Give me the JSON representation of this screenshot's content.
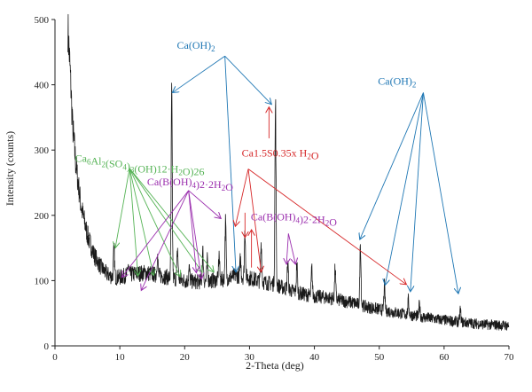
{
  "chart_data": {
    "type": "line",
    "xlabel": "2-Theta (deg)",
    "ylabel": "Intensity (counts)",
    "xlim": [
      0,
      70
    ],
    "ylim": [
      0,
      500
    ],
    "xticks": [
      0,
      10,
      20,
      30,
      40,
      50,
      60,
      70
    ],
    "yticks": [
      0,
      100,
      200,
      300,
      400,
      500
    ],
    "grid": false,
    "series_color": "#1a1a1a",
    "baseline": [
      [
        2.0,
        485
      ],
      [
        2.3,
        430
      ],
      [
        2.7,
        340
      ],
      [
        3.2,
        280
      ],
      [
        4.0,
        215
      ],
      [
        5.0,
        170
      ],
      [
        6.0,
        140
      ],
      [
        7.0,
        122
      ],
      [
        8.0,
        110
      ],
      [
        9.0,
        105
      ],
      [
        10.0,
        105
      ],
      [
        11.0,
        108
      ],
      [
        12.0,
        110
      ],
      [
        14.0,
        112
      ],
      [
        16.0,
        108
      ],
      [
        18.0,
        104
      ],
      [
        20.0,
        100
      ],
      [
        22.0,
        98
      ],
      [
        24.0,
        100
      ],
      [
        26.0,
        102
      ],
      [
        28.0,
        108
      ],
      [
        30.0,
        104
      ],
      [
        32.0,
        98
      ],
      [
        34.0,
        94
      ],
      [
        36.0,
        86
      ],
      [
        38.0,
        80
      ],
      [
        40.0,
        76
      ],
      [
        42.0,
        74
      ],
      [
        44.0,
        70
      ],
      [
        46.0,
        66
      ],
      [
        48.0,
        60
      ],
      [
        50.0,
        56
      ],
      [
        52.0,
        52
      ],
      [
        55.0,
        47
      ],
      [
        58.0,
        42
      ],
      [
        62.0,
        37
      ],
      [
        66.0,
        33
      ],
      [
        70.0,
        31
      ]
    ],
    "peaks": [
      {
        "x": 9.1,
        "y": 148
      },
      {
        "x": 11.3,
        "y": 125
      },
      {
        "x": 15.8,
        "y": 138
      },
      {
        "x": 18.0,
        "y": 385
      },
      {
        "x": 18.9,
        "y": 148
      },
      {
        "x": 20.7,
        "y": 118
      },
      {
        "x": 22.8,
        "y": 145
      },
      {
        "x": 23.5,
        "y": 130
      },
      {
        "x": 25.3,
        "y": 140
      },
      {
        "x": 26.3,
        "y": 188
      },
      {
        "x": 28.6,
        "y": 132
      },
      {
        "x": 29.3,
        "y": 178
      },
      {
        "x": 31.8,
        "y": 158
      },
      {
        "x": 34.0,
        "y": 370
      },
      {
        "x": 35.9,
        "y": 130
      },
      {
        "x": 37.3,
        "y": 125
      },
      {
        "x": 39.6,
        "y": 118
      },
      {
        "x": 43.2,
        "y": 118
      },
      {
        "x": 47.1,
        "y": 158
      },
      {
        "x": 50.8,
        "y": 92
      },
      {
        "x": 54.5,
        "y": 70
      },
      {
        "x": 56.2,
        "y": 64
      },
      {
        "x": 62.5,
        "y": 55
      }
    ],
    "annotations": [
      {
        "label": "Ca(OH)",
        "sub": "2",
        "color": "#1f77b4",
        "label_pos": [
          18.8,
          455
        ],
        "hub": [
          26.2,
          444
        ],
        "targets": [
          [
            18.1,
            388
          ],
          [
            27.9,
            113
          ],
          [
            33.4,
            370
          ]
        ]
      },
      {
        "label": "Ca(OH)",
        "sub": "2",
        "color": "#1f77b4",
        "label_pos": [
          49.8,
          400
        ],
        "hub": [
          56.8,
          388
        ],
        "targets": [
          [
            47.0,
            163
          ],
          [
            50.9,
            93
          ],
          [
            54.8,
            83
          ],
          [
            62.2,
            80
          ]
        ]
      },
      {
        "label": "Ca",
        "parts": [
          [
            "Ca",
            ""
          ],
          [
            "6",
            "sub"
          ],
          [
            "Al",
            ""
          ],
          [
            "2",
            "sub"
          ],
          [
            "(SO",
            ""
          ],
          [
            "4",
            "sub"
          ],
          [
            ")",
            ""
          ],
          [
            "3",
            "sub"
          ],
          [
            "(OH)12·H",
            ""
          ],
          [
            "2",
            "sub"
          ],
          [
            "O)26",
            ""
          ]
        ],
        "color": "#55b355",
        "label_pos": [
          3.1,
          282
        ],
        "hub": [
          11.5,
          272
        ],
        "targets": [
          [
            9.3,
            150
          ],
          [
            12.8,
            107
          ],
          [
            15.2,
            108
          ],
          [
            19.3,
            106
          ],
          [
            24.5,
            113
          ],
          [
            22.7,
            113
          ]
        ]
      },
      {
        "label": "Ca(B(OH)",
        "parts": [
          [
            "Ca(B(OH)",
            ""
          ],
          [
            "4",
            "sub"
          ],
          [
            ")2·2H",
            ""
          ],
          [
            "2",
            "sub"
          ],
          [
            "O",
            ""
          ]
        ],
        "color": "#9b2fae",
        "label_pos": [
          14.2,
          246
        ],
        "hub": [
          20.6,
          238
        ],
        "targets": [
          [
            10.3,
            105
          ],
          [
            13.3,
            85
          ],
          [
            21.8,
            112
          ],
          [
            25.6,
            195
          ],
          [
            22.6,
            102
          ]
        ]
      },
      {
        "label": "Ca1.5S0.35x H",
        "parts": [
          [
            "Ca1.5S0.35x H",
            ""
          ],
          [
            "2",
            "sub"
          ],
          [
            "O",
            ""
          ]
        ],
        "color": "#d62728",
        "label_pos": [
          28.8,
          290
        ],
        "hub": [
          29.8,
          271
        ],
        "targets": [
          [
            27.8,
            183
          ],
          [
            31.8,
            113
          ],
          [
            54.2,
            94
          ]
        ]
      },
      {
        "label": "Ca(B(OH)",
        "parts": [
          [
            "Ca(B(OH)",
            ""
          ],
          [
            "4",
            "sub"
          ],
          [
            ")2·2H",
            ""
          ],
          [
            "2",
            "sub"
          ],
          [
            "O",
            ""
          ]
        ],
        "color": "#9b2fae",
        "label_pos": [
          30.2,
          192
        ],
        "hub": [
          36.0,
          172
        ],
        "targets": [
          [
            35.7,
            125
          ],
          [
            37.1,
            125
          ]
        ]
      }
    ],
    "vertical_arrows": [
      {
        "x": 33.0,
        "y_from": 318,
        "y_to": 366,
        "color": "#d62728"
      },
      {
        "x": 30.3,
        "y_from": 120,
        "y_to": 178,
        "color": "#d62728"
      },
      {
        "x": 29.3,
        "y_from": 204,
        "y_to": 166,
        "color": "#d62728"
      }
    ]
  }
}
